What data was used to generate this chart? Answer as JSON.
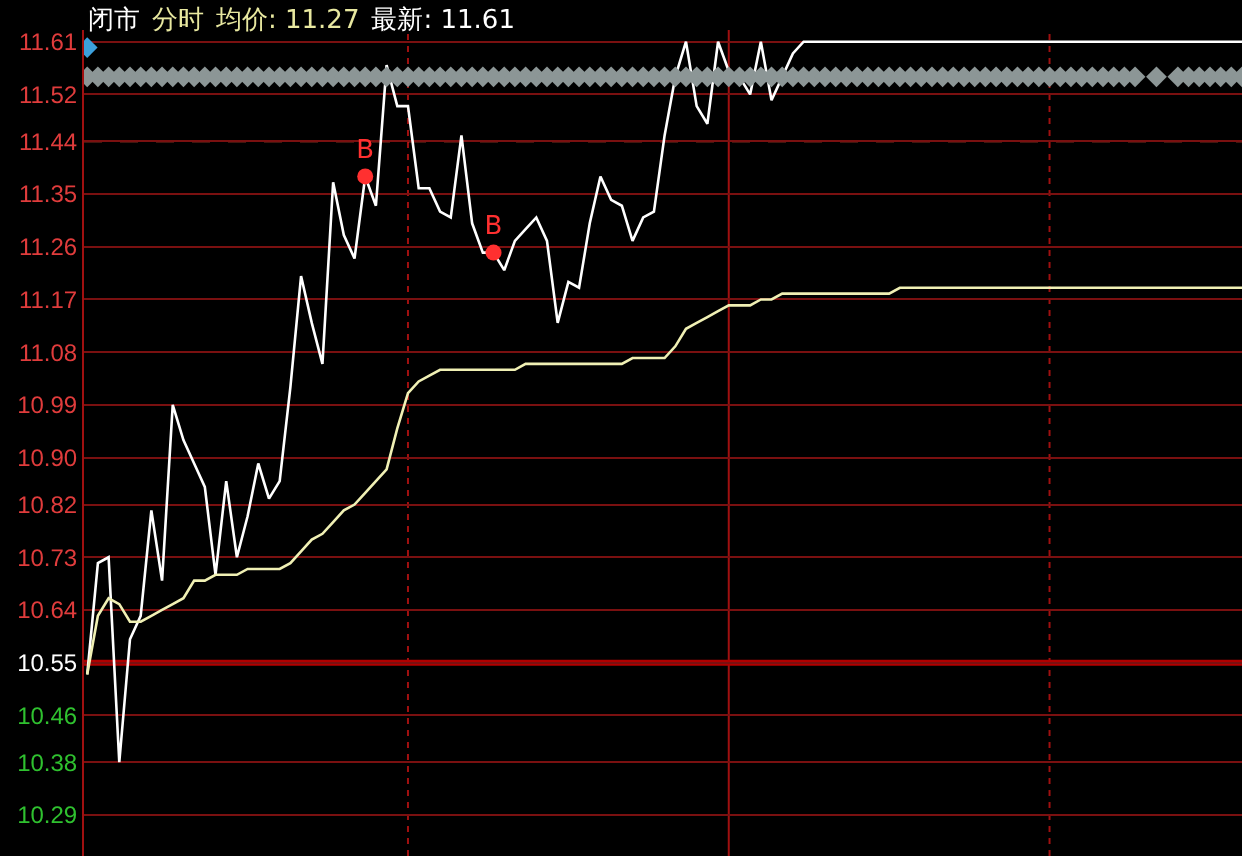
{
  "chart_data": {
    "type": "line",
    "title": "闭市",
    "annotations": [
      "分时",
      "均价: 11.27",
      "最新: 11.61"
    ],
    "categories": [
      null,
      null,
      null,
      null,
      null,
      null,
      null,
      null,
      null,
      null,
      null,
      null,
      null,
      null,
      null,
      null,
      null,
      null,
      null,
      null,
      null,
      null,
      null,
      null,
      null,
      null,
      null,
      null,
      null,
      null,
      null,
      null,
      null,
      null,
      null,
      null,
      null,
      null,
      null,
      null,
      null,
      null,
      null,
      null,
      null,
      null,
      null,
      null,
      null,
      null,
      null,
      null,
      null,
      null,
      null,
      null,
      null,
      null,
      null,
      null,
      null,
      null,
      null,
      null,
      null,
      null,
      null,
      null,
      null,
      null,
      null,
      null,
      null,
      null,
      null,
      null,
      null,
      null,
      null,
      null,
      null,
      null,
      null,
      null,
      null,
      null,
      null,
      null,
      null,
      null,
      null,
      null,
      null,
      null,
      null,
      null,
      null,
      null,
      null,
      null,
      null,
      null,
      null,
      null,
      null,
      null,
      null,
      null,
      null
    ],
    "series": [
      {
        "color": "#ffffff",
        "marker": "none",
        "values": [
          10.53,
          10.72,
          10.73,
          10.38,
          10.59,
          10.63,
          10.81,
          10.69,
          10.99,
          10.93,
          10.89,
          10.85,
          10.7,
          10.86,
          10.73,
          10.8,
          10.89,
          10.83,
          10.86,
          11.02,
          11.21,
          11.13,
          11.06,
          11.37,
          11.28,
          11.24,
          11.38,
          11.33,
          11.57,
          11.5,
          11.5,
          11.36,
          11.36,
          11.32,
          11.31,
          11.45,
          11.3,
          11.25,
          11.25,
          11.22,
          11.27,
          11.29,
          11.31,
          11.27,
          11.13,
          11.2,
          11.19,
          11.3,
          11.38,
          11.34,
          11.33,
          11.27,
          11.31,
          11.32,
          11.45,
          11.55,
          11.61,
          11.5,
          11.47,
          11.61,
          11.56,
          11.55,
          11.52,
          11.61,
          11.51,
          11.55,
          11.59,
          11.61,
          11.61,
          11.61,
          11.61,
          11.61,
          11.61,
          11.61,
          11.61,
          11.61,
          11.61,
          11.61,
          11.61,
          11.61,
          11.61,
          11.61,
          11.61,
          11.61,
          11.61,
          11.61,
          11.61,
          11.61,
          11.61,
          11.61,
          11.61,
          11.61,
          11.61,
          11.61,
          11.61,
          11.61,
          11.61,
          11.61,
          11.61,
          11.61,
          11.61,
          11.61,
          11.61,
          11.61,
          11.61,
          11.61,
          11.61,
          11.61,
          11.61
        ]
      },
      {
        "color": "#f0f0b4",
        "marker": "none",
        "values": [
          10.53,
          10.63,
          10.66,
          10.65,
          10.62,
          10.62,
          10.63,
          10.64,
          10.65,
          10.66,
          10.69,
          10.69,
          10.7,
          10.7,
          10.7,
          10.71,
          10.71,
          10.71,
          10.71,
          10.72,
          10.74,
          10.76,
          10.77,
          10.79,
          10.81,
          10.82,
          10.84,
          10.86,
          10.88,
          10.95,
          11.01,
          11.03,
          11.04,
          11.05,
          11.05,
          11.05,
          11.05,
          11.05,
          11.05,
          11.05,
          11.05,
          11.06,
          11.06,
          11.06,
          11.06,
          11.06,
          11.06,
          11.06,
          11.06,
          11.06,
          11.06,
          11.07,
          11.07,
          11.07,
          11.07,
          11.09,
          11.12,
          11.13,
          11.14,
          11.15,
          11.16,
          11.16,
          11.16,
          11.17,
          11.17,
          11.18,
          11.18,
          11.18,
          11.18,
          11.18,
          11.18,
          11.18,
          11.18,
          11.18,
          11.18,
          11.18,
          11.19,
          11.19,
          11.19,
          11.19,
          11.19,
          11.19,
          11.19,
          11.19,
          11.19,
          11.19,
          11.19,
          11.19,
          11.19,
          11.19,
          11.19,
          11.19,
          11.19,
          11.19,
          11.19,
          11.19,
          11.19,
          11.19,
          11.19,
          11.19,
          11.19,
          11.19,
          11.19,
          11.19,
          11.19,
          11.19,
          11.19,
          11.19,
          11.19
        ]
      },
      {
        "type": "scatter",
        "color": "#8c9696",
        "marker": "diamond",
        "values": [
          11.55,
          11.55,
          11.55,
          11.55,
          11.55,
          11.55,
          11.55,
          11.55,
          11.55,
          11.55,
          11.55,
          11.55,
          11.55,
          11.55,
          11.55,
          11.55,
          11.55,
          11.55,
          11.55,
          11.55,
          11.55,
          11.55,
          11.55,
          11.55,
          11.55,
          11.55,
          11.55,
          11.55,
          11.55,
          11.55,
          11.55,
          11.55,
          11.55,
          11.55,
          11.55,
          11.55,
          11.55,
          11.55,
          11.55,
          11.55,
          11.55,
          11.55,
          11.55,
          11.55,
          11.55,
          11.55,
          11.55,
          11.55,
          11.55,
          11.55,
          11.55,
          11.55,
          11.55,
          11.55,
          11.55,
          11.55,
          11.55,
          11.55,
          11.55,
          11.55,
          11.55,
          11.55,
          11.55,
          11.55,
          11.55,
          11.55,
          11.55,
          11.55,
          11.55,
          11.55,
          11.55,
          11.55,
          11.55,
          11.55,
          11.55,
          11.55,
          11.55,
          11.55,
          11.55,
          11.55,
          11.55,
          11.55,
          11.55,
          11.55,
          11.55,
          11.55,
          11.55,
          11.55,
          11.55,
          11.55,
          11.55,
          11.55,
          11.55,
          11.55,
          11.55,
          11.55,
          11.55,
          11.55,
          11.55,
          null,
          11.55,
          null,
          11.55,
          11.55,
          11.55,
          11.55,
          11.55,
          11.55,
          11.55
        ]
      },
      {
        "type": "scatter",
        "color": "#3ca0dc",
        "marker": "diamond",
        "values": [
          11.6,
          null,
          null,
          null,
          null,
          null,
          null,
          null,
          null,
          null,
          null,
          null,
          null,
          null,
          null,
          null,
          null,
          null,
          null,
          null,
          null,
          null,
          null,
          null,
          null,
          null,
          null,
          null,
          null,
          null,
          null,
          null,
          null,
          null,
          null,
          null,
          null,
          null,
          null,
          null,
          null,
          null,
          null,
          null,
          null,
          null,
          null,
          null,
          null,
          null,
          null,
          null,
          null,
          null,
          null,
          null,
          null,
          null,
          null,
          null,
          null,
          null,
          null,
          null,
          null,
          null,
          null,
          null,
          null,
          null,
          null,
          null,
          null,
          null,
          null,
          null,
          null,
          null,
          null,
          null,
          null,
          null,
          null,
          null,
          null,
          null,
          null,
          null,
          null,
          null,
          null,
          null,
          null,
          null,
          null,
          null,
          null,
          null,
          null,
          null,
          null,
          null,
          null,
          null,
          null,
          null,
          null,
          null,
          null
        ]
      },
      {
        "type": "scatter",
        "color": "#ff3030",
        "marker": "circle",
        "values": [
          null,
          null,
          null,
          null,
          null,
          null,
          null,
          null,
          null,
          null,
          null,
          null,
          null,
          null,
          null,
          null,
          null,
          null,
          null,
          null,
          null,
          null,
          null,
          null,
          null,
          null,
          11.38,
          null,
          null,
          null,
          null,
          null,
          null,
          null,
          null,
          null,
          null,
          null,
          11.25,
          null,
          null,
          null,
          null,
          null,
          null,
          null,
          null,
          null,
          null,
          null,
          null,
          null,
          null,
          null,
          null,
          null,
          null,
          null,
          null,
          null,
          null,
          null,
          null,
          null,
          null,
          null,
          null,
          null,
          null,
          null,
          null,
          null,
          null,
          null,
          null,
          null,
          null,
          null,
          null,
          null,
          null,
          null,
          null,
          null,
          null,
          null,
          null,
          null,
          null,
          null,
          null,
          null,
          null,
          null,
          null,
          null,
          null,
          null,
          null,
          null,
          null,
          null,
          null,
          null,
          null,
          null,
          null,
          null,
          null
        ],
        "value_labels": [
          null,
          null,
          null,
          null,
          null,
          null,
          null,
          null,
          null,
          null,
          null,
          null,
          null,
          null,
          null,
          null,
          null,
          null,
          null,
          null,
          null,
          null,
          null,
          null,
          null,
          null,
          "B",
          null,
          null,
          null,
          null,
          null,
          null,
          null,
          null,
          null,
          null,
          null,
          "B",
          null,
          null,
          null,
          null,
          null,
          null,
          null,
          null,
          null,
          null,
          null,
          null,
          null,
          null,
          null,
          null,
          null,
          null,
          null,
          null,
          null,
          null,
          null,
          null,
          null,
          null,
          null,
          null,
          null,
          null,
          null,
          null,
          null,
          null,
          null,
          null,
          null,
          null,
          null,
          null,
          null,
          null,
          null,
          null,
          null,
          null,
          null,
          null,
          null,
          null,
          null,
          null,
          null,
          null,
          null,
          null,
          null,
          null,
          null,
          null,
          null,
          null,
          null,
          null,
          null,
          null,
          null,
          null,
          null,
          null
        ]
      }
    ],
    "ylim": [
      10.22,
      11.63
    ],
    "yticks": [
      11.61,
      11.52,
      11.44,
      11.35,
      11.26,
      11.17,
      11.08,
      10.99,
      {
        "value": 10.9,
        "label": "10.90"
      },
      10.82,
      10.73,
      10.64,
      10.55,
      10.46,
      10.38,
      10.29
    ],
    "ref_lines": [
      {
        "axis": "y",
        "value": 10.55,
        "color": "#b00000",
        "line_style": "solid"
      },
      {
        "axis": "y",
        "value": 11.44,
        "color": "#ff5a3c",
        "line_style": "dashed"
      }
    ],
    "grid": "y",
    "line_style": "solid"
  }
}
